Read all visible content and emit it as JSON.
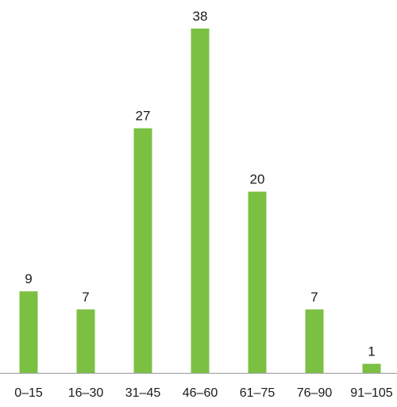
{
  "chart_data": {
    "type": "bar",
    "categories": [
      "0–15",
      "16–30",
      "31–45",
      "46–60",
      "61–75",
      "76–90",
      "91–105"
    ],
    "values": [
      9,
      7,
      27,
      38,
      20,
      7,
      1
    ],
    "title": "",
    "xlabel": "",
    "ylabel": "",
    "ylim": [
      0,
      38
    ],
    "grid": false,
    "legend": "none",
    "data_labels": true,
    "colors": {
      "bar": "#7bc043",
      "axis": "#999999",
      "text": "#1a1a1a"
    }
  }
}
